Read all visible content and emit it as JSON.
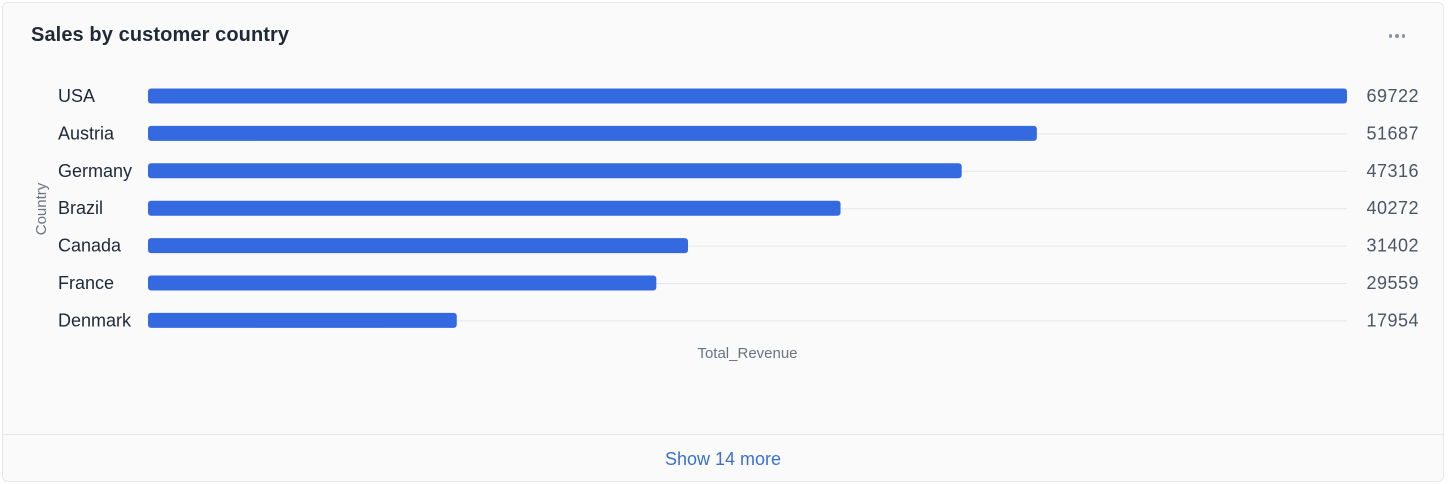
{
  "card": {
    "title": "Sales by customer country",
    "more_icon": "more-horizontal-icon",
    "show_more_label": "Show 14 more"
  },
  "colors": {
    "bar": "#3569e0",
    "grid": "#e5e7eb",
    "category_text": "#1f2937",
    "value_text": "#4b5563",
    "axis_label_text": "#6b7280",
    "link": "#3b6fd4"
  },
  "chart_data": {
    "type": "bar",
    "orientation": "horizontal",
    "categories": [
      "USA",
      "Austria",
      "Germany",
      "Brazil",
      "Canada",
      "France",
      "Denmark"
    ],
    "values": [
      69722,
      51687,
      47316,
      40272,
      31402,
      29559,
      17954
    ],
    "title": "Sales by customer country",
    "xlabel": "Total_Revenue",
    "ylabel": "Country",
    "xlim": [
      0,
      69722
    ],
    "data_labels": true,
    "grid": false,
    "legend": "none"
  }
}
